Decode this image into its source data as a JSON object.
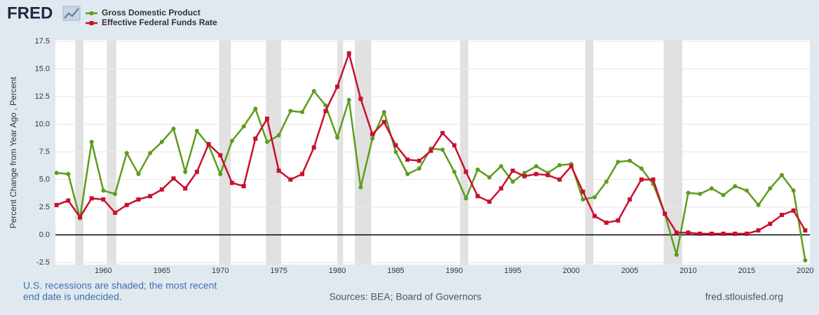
{
  "chart_data": {
    "type": "line",
    "logo": "FRED",
    "ylabel": "Percent Change from Year Ago , Percent",
    "note": [
      "U.S. recessions are shaded; the most recent",
      "end date is undecided."
    ],
    "source": "Sources: BEA; Board of Governors",
    "credit": "fred.stlouisfed.org",
    "x": [
      1956,
      1957,
      1958,
      1959,
      1960,
      1961,
      1962,
      1963,
      1964,
      1965,
      1966,
      1967,
      1968,
      1969,
      1970,
      1971,
      1972,
      1973,
      1974,
      1975,
      1976,
      1977,
      1978,
      1979,
      1980,
      1981,
      1982,
      1983,
      1984,
      1985,
      1986,
      1987,
      1988,
      1989,
      1990,
      1991,
      1992,
      1993,
      1994,
      1995,
      1996,
      1997,
      1998,
      1999,
      2000,
      2001,
      2002,
      2003,
      2004,
      2005,
      2006,
      2007,
      2008,
      2009,
      2010,
      2011,
      2012,
      2013,
      2014,
      2015,
      2016,
      2017,
      2018,
      2019,
      2020
    ],
    "series": [
      {
        "name": "Gross Domestic Product",
        "color": "#5e9c1c",
        "marker": "circle",
        "values": [
          5.6,
          5.5,
          1.5,
          8.4,
          4.0,
          3.7,
          7.4,
          5.5,
          7.4,
          8.4,
          9.6,
          5.7,
          9.4,
          8.1,
          5.5,
          8.5,
          9.8,
          11.4,
          8.4,
          9.0,
          11.2,
          11.1,
          13.0,
          11.7,
          8.8,
          12.2,
          4.3,
          8.7,
          11.1,
          7.5,
          5.5,
          6.0,
          7.8,
          7.7,
          5.7,
          3.3,
          5.9,
          5.2,
          6.2,
          4.8,
          5.6,
          6.2,
          5.6,
          6.3,
          6.4,
          3.2,
          3.4,
          4.8,
          6.6,
          6.7,
          6.0,
          4.6,
          1.9,
          -1.8,
          3.8,
          3.7,
          4.2,
          3.6,
          4.4,
          4.0,
          2.7,
          4.2,
          5.4,
          4.0,
          -2.3
        ]
      },
      {
        "name": "Effective Federal Funds Rate",
        "color": "#c8102e",
        "marker": "square",
        "values": [
          2.7,
          3.1,
          1.6,
          3.3,
          3.2,
          2.0,
          2.7,
          3.2,
          3.5,
          4.1,
          5.1,
          4.2,
          5.7,
          8.2,
          7.2,
          4.7,
          4.4,
          8.7,
          10.5,
          5.8,
          5.0,
          5.5,
          7.9,
          11.2,
          13.4,
          16.4,
          12.3,
          9.1,
          10.2,
          8.1,
          6.8,
          6.7,
          7.6,
          9.2,
          8.1,
          5.7,
          3.5,
          3.0,
          4.2,
          5.8,
          5.3,
          5.5,
          5.4,
          5.0,
          6.2,
          3.9,
          1.7,
          1.1,
          1.3,
          3.2,
          5.0,
          5.0,
          1.9,
          0.2,
          0.2,
          0.1,
          0.1,
          0.1,
          0.1,
          0.1,
          0.4,
          1.0,
          1.8,
          2.2,
          0.4
        ]
      }
    ],
    "recessions": [
      [
        1957.6,
        1958.3
      ],
      [
        1960.3,
        1961.1
      ],
      [
        1969.9,
        1970.9
      ],
      [
        1973.9,
        1975.2
      ],
      [
        1980.0,
        1980.5
      ],
      [
        1981.5,
        1982.9
      ],
      [
        1990.5,
        1991.2
      ],
      [
        2001.2,
        2001.9
      ],
      [
        2007.9,
        2009.5
      ]
    ],
    "xlim": [
      1955.9,
      2020.4
    ],
    "xticks": [
      1960,
      1965,
      1970,
      1975,
      1980,
      1985,
      1990,
      1995,
      2000,
      2005,
      2010,
      2015,
      2020
    ],
    "ylim": [
      -2.5,
      17.5
    ],
    "yticks": [
      -2.5,
      {
        "value": 0,
        "label": "0.0"
      },
      2.5,
      {
        "value": 5,
        "label": "5.0"
      },
      7.5,
      {
        "value": 10,
        "label": "10.0"
      },
      12.5,
      {
        "value": 15,
        "label": "15.0"
      },
      17.5
    ],
    "grid": true
  }
}
